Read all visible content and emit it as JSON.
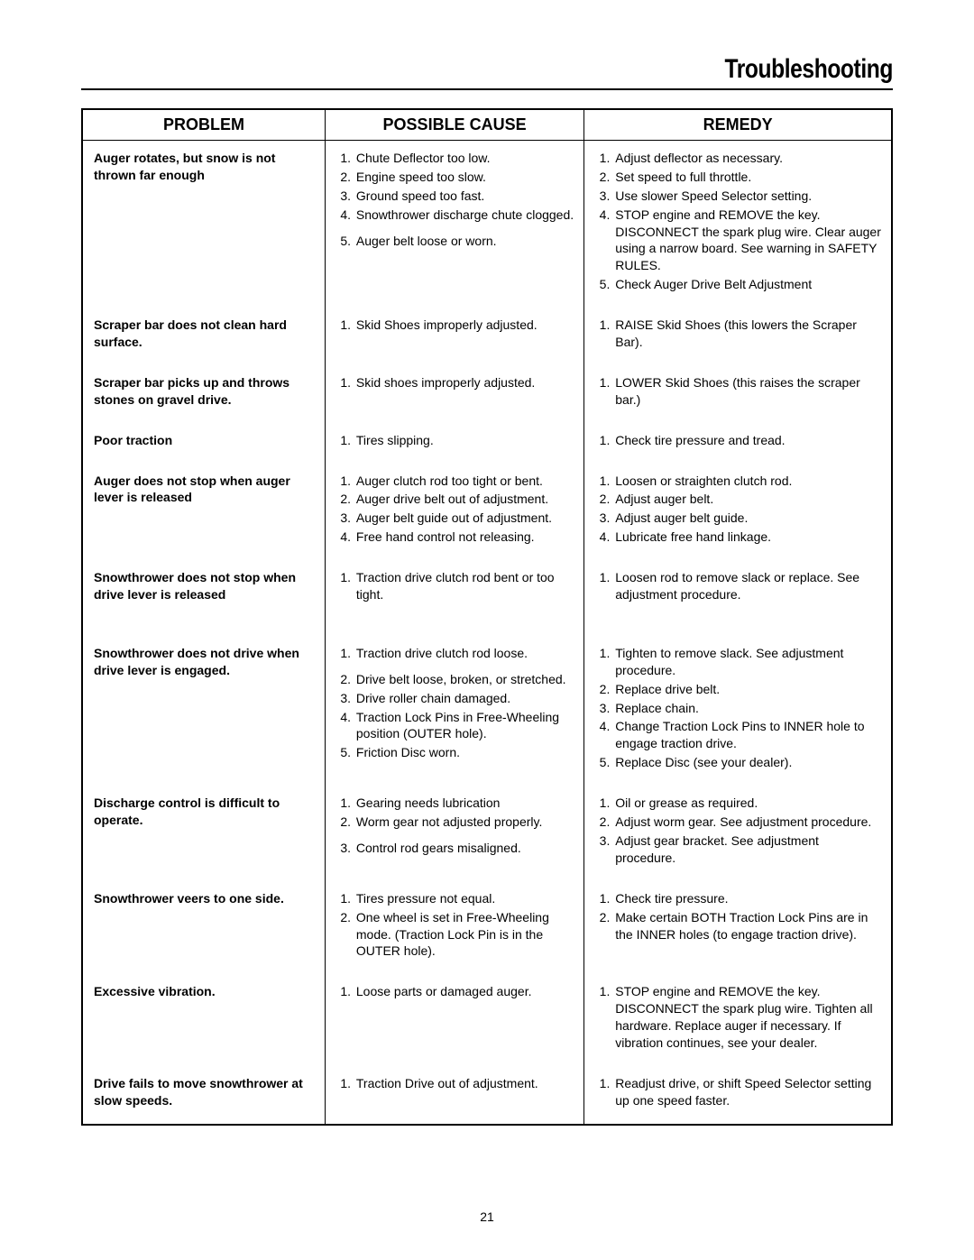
{
  "page_title": "Troubleshooting",
  "page_number": "21",
  "columns": [
    "PROBLEM",
    "POSSIBLE CAUSE",
    "REMEDY"
  ],
  "col_widths_pct": [
    30,
    32,
    38
  ],
  "font": {
    "body_pt": 14,
    "header_pt": 18,
    "title_pt": 30
  },
  "colors": {
    "text": "#000000",
    "background": "#ffffff",
    "border": "#000000"
  },
  "rows": [
    {
      "problem": "Auger rotates, but snow is not thrown far enough",
      "causes": [
        "Chute Deflector too low.",
        "Engine speed too slow.",
        "Ground speed too fast.",
        "Snowthrower discharge chute clogged.",
        "Auger belt loose or worn."
      ],
      "remedies": [
        "Adjust deflector as necessary.",
        "Set speed to full throttle.",
        "Use slower Speed Selector setting.",
        "STOP engine and REMOVE the key. DISCONNECT the spark plug wire. Clear auger using a narrow board. See warning in SAFETY RULES.",
        "Check Auger Drive Belt Adjustment"
      ],
      "cause_gap_before": {
        "4": true
      }
    },
    {
      "problem": "Scraper bar does not clean hard surface.",
      "causes": [
        "Skid Shoes improperly adjusted."
      ],
      "remedies": [
        "RAISE Skid Shoes (this lowers the Scraper Bar)."
      ]
    },
    {
      "problem": "Scraper bar picks up and throws stones on gravel drive.",
      "causes": [
        "Skid shoes improperly adjusted."
      ],
      "remedies": [
        "LOWER Skid Shoes (this raises the scraper bar.)"
      ]
    },
    {
      "problem": "Poor traction",
      "causes": [
        "Tires slipping."
      ],
      "remedies": [
        "Check tire pressure and tread."
      ]
    },
    {
      "problem": "Auger does not stop when auger lever is released",
      "causes": [
        "Auger clutch rod too tight or bent.",
        "Auger drive belt out of adjustment.",
        "Auger belt guide out of adjustment.",
        "Free hand control not releasing."
      ],
      "remedies": [
        "Loosen or straighten clutch rod.",
        "Adjust auger belt.",
        "Adjust auger belt guide.",
        "Lubricate free hand linkage."
      ]
    },
    {
      "problem": "Snowthrower does not stop when drive lever is released",
      "causes": [
        "Traction drive clutch rod bent or too tight."
      ],
      "remedies": [
        "Loosen rod to remove slack or replace. See adjustment procedure."
      ],
      "extra_pad": true
    },
    {
      "problem": "Snowthrower does not drive when drive lever is engaged.",
      "causes": [
        "Traction drive clutch rod loose.",
        "Drive belt loose, broken, or stretched.",
        "Drive roller chain damaged.",
        "Traction Lock Pins in Free-Wheeling position (OUTER hole).",
        "Friction Disc worn."
      ],
      "remedies": [
        "Tighten to remove slack. See adjustment procedure.",
        "Replace drive belt.",
        "Replace chain.",
        "Change Traction Lock Pins to INNER hole to engage traction drive.",
        "Replace Disc (see your dealer)."
      ],
      "cause_gap_before": {
        "1": true
      }
    },
    {
      "problem": "Discharge control is difficult to operate.",
      "causes": [
        "Gearing needs lubrication",
        "Worm gear not adjusted properly.",
        "Control rod gears misaligned."
      ],
      "remedies": [
        "Oil or grease as required.",
        "Adjust worm gear. See adjustment procedure.",
        "Adjust gear bracket. See adjustment procedure."
      ],
      "cause_gap_before": {
        "2": true
      }
    },
    {
      "problem": "Snowthrower veers to one side.",
      "causes": [
        "Tires pressure not equal.",
        "One wheel is set in Free-Wheeling mode. (Traction Lock Pin is in the OUTER hole)."
      ],
      "remedies": [
        "Check tire pressure.",
        "Make certain BOTH Traction Lock Pins are in the INNER holes (to engage traction drive)."
      ]
    },
    {
      "problem": "Excessive vibration.",
      "causes": [
        "Loose parts or damaged auger."
      ],
      "remedies": [
        "STOP engine and REMOVE the key. DISCONNECT the spark plug wire. Tighten all hardware. Replace auger if necessary. If vibration continues, see your dealer."
      ]
    },
    {
      "problem": "Drive fails to move snowthrower at slow speeds.",
      "causes": [
        "Traction Drive out of adjustment."
      ],
      "remedies": [
        "Readjust drive, or shift Speed Selector setting up one speed faster."
      ]
    }
  ]
}
